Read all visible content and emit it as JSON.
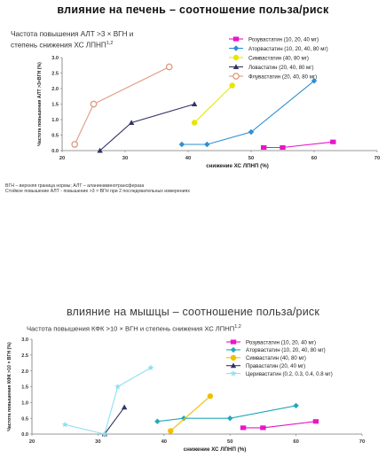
{
  "chart_data": [
    {
      "type": "scatter",
      "title": "влияние на печень – соотношение польза/риск",
      "subtitle_lines": [
        "Частота повышения АЛТ >3 × ВГН и",
        "степень снижения ХС ЛПНП"
      ],
      "subtitle_sup": "1,2",
      "xlabel": "снижение ХС ЛПНП (%)",
      "ylabel": "Частота повышения АЛТ >3×ВГН (%)",
      "xlim": [
        20,
        70
      ],
      "ylim": [
        0,
        3.0
      ],
      "x_ticks": [
        "20",
        "30",
        "40",
        "50",
        "60",
        "70"
      ],
      "y_ticks": [
        "0.0",
        "0.5",
        "1.0",
        "1.5",
        "2.0",
        "2.5",
        "3.0"
      ],
      "legend_position": "top-right",
      "series": [
        {
          "name": "Розувастатин (10, 20, 40 мг)",
          "color": "#e815c8",
          "marker": "square",
          "x": [
            52,
            55,
            63
          ],
          "y": [
            0.1,
            0.1,
            0.28
          ]
        },
        {
          "name": "Аторвастатин (10, 20, 40, 80 мг)",
          "color": "#2d8fd5",
          "marker": "diamond",
          "x": [
            39,
            43,
            50,
            60
          ],
          "y": [
            0.2,
            0.2,
            0.6,
            2.25
          ]
        },
        {
          "name": "Симвастатин (40, 80 мг)",
          "color": "#e6e600",
          "marker": "circle",
          "x": [
            41,
            47
          ],
          "y": [
            0.9,
            2.1
          ]
        },
        {
          "name": "Ловастатин (20, 40, 80 мг)",
          "color": "#333366",
          "marker": "triangle",
          "x": [
            26,
            31,
            41
          ],
          "y": [
            0.0,
            0.9,
            1.5
          ]
        },
        {
          "name": "Флувастатин (20, 40, 80 мг)",
          "color": "#e09a80",
          "marker": "circle-open",
          "x": [
            22,
            25,
            37
          ],
          "y": [
            0.2,
            1.5,
            2.7
          ]
        }
      ],
      "footnotes": [
        "ВГН – верхняя граница нормы; АЛТ – аланинаминотрансфераза",
        "Стойкое повышение АЛТ - повышение >3 × ВГН при 2 последовательных измерениях"
      ]
    },
    {
      "type": "scatter",
      "title": "влияние на мышцы – соотношение польза/риск",
      "subtitle": "Частота повышения КФК >10 × ВГН и степень снижения ХС ЛПНП",
      "subtitle_sup": "1,2",
      "xlabel": "снижение ХС ЛПНП (%)",
      "ylabel": "Частота повышения КФК >10 × ВГН (%)",
      "xlim": [
        20,
        70
      ],
      "ylim": [
        0,
        3.0
      ],
      "x_ticks": [
        "20",
        "30",
        "40",
        "50",
        "60",
        "70"
      ],
      "y_ticks": [
        "0.0",
        "0.5",
        "1.0",
        "1.5",
        "2.0",
        "2.5",
        "3.0"
      ],
      "legend_position": "top-right",
      "series": [
        {
          "name": "Розувастатин (10, 20, 40 мг)",
          "color": "#e815c8",
          "marker": "square",
          "x": [
            52,
            55,
            63
          ],
          "y": [
            0.2,
            0.2,
            0.4
          ]
        },
        {
          "name": "Аторвастатин (10, 20, 40, 80 мг)",
          "color": "#20a8b8",
          "marker": "diamond",
          "x": [
            39,
            43,
            50,
            60
          ],
          "y": [
            0.4,
            0.5,
            0.5,
            0.9
          ]
        },
        {
          "name": "Симвастатин (40, 80 мг)",
          "color": "#f0c000",
          "marker": "circle",
          "x": [
            41,
            47
          ],
          "y": [
            0.1,
            1.2
          ]
        },
        {
          "name": "Правастатин (20, 40 мг)",
          "color": "#333366",
          "marker": "triangle",
          "x": [
            31,
            34
          ],
          "y": [
            0.0,
            0.85
          ]
        },
        {
          "name": "Церивастатин (0.2, 0.3, 0.4, 0.8 мг)",
          "color": "#8fe0f0",
          "marker": "star",
          "x": [
            25,
            31,
            33,
            38
          ],
          "y": [
            0.3,
            0.0,
            1.5,
            2.1
          ]
        }
      ]
    }
  ]
}
